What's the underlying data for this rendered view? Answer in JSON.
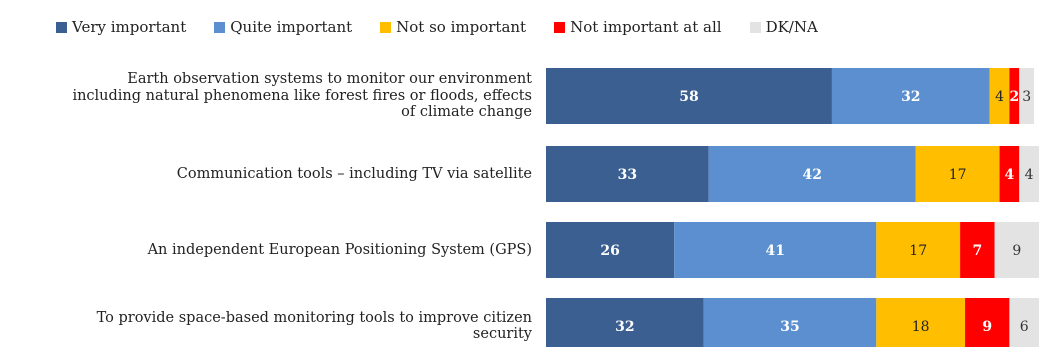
{
  "chart_data": {
    "type": "bar",
    "orientation": "horizontal",
    "stacked": true,
    "legend_position": "top",
    "grid": false,
    "xlim": [
      0,
      100
    ],
    "categories": [
      "Earth observation systems to monitor our environment including natural phenomena like forest fires or floods, effects of climate change",
      "Communication tools – including TV via satellite",
      "An independent European Positioning System (GPS)",
      "To provide space-based monitoring tools to improve citizen security"
    ],
    "category_lines": [
      [
        "Earth observation systems to monitor our environment",
        "including natural phenomena like forest fires or floods, effects",
        "of climate change"
      ],
      [
        "Communication tools – including TV via satellite"
      ],
      [
        "An independent European Positioning System (GPS)"
      ],
      [
        "To provide space-based monitoring tools to improve citizen",
        "security"
      ]
    ],
    "series": [
      {
        "name": "Very important",
        "color": "#3b5f91",
        "label_color": "#ffffff",
        "values": [
          58,
          33,
          26,
          32
        ]
      },
      {
        "name": "Quite important",
        "color": "#5b8fcf",
        "label_color": "#ffffff",
        "values": [
          32,
          42,
          41,
          35
        ]
      },
      {
        "name": "Not so important",
        "color": "#ffbf00",
        "label_color": "#222222",
        "values": [
          4,
          17,
          17,
          18
        ]
      },
      {
        "name": "Not important at all",
        "color": "#ff0000",
        "label_color": "#ffffff",
        "values": [
          2,
          4,
          7,
          9
        ]
      },
      {
        "name": "DK/NA",
        "color": "#e3e3e3",
        "label_color": "#333333",
        "values": [
          3,
          4,
          9,
          6
        ]
      }
    ]
  }
}
